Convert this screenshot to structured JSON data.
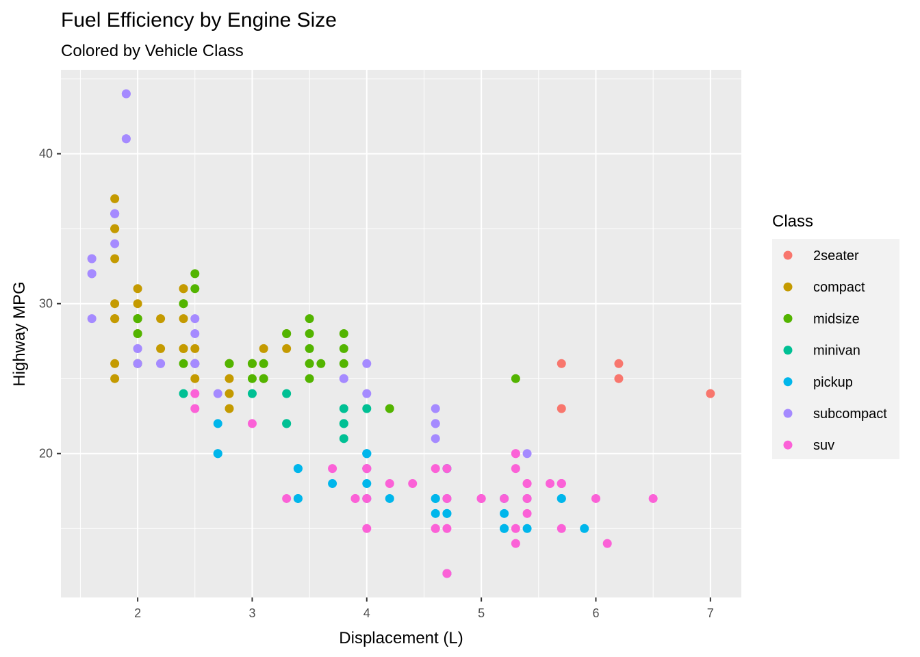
{
  "chart_data": {
    "type": "scatter",
    "title": "Fuel Efficiency by Engine Size",
    "subtitle": "Colored by Vehicle Class",
    "xlabel": "Displacement (L)",
    "ylabel": "Highway MPG",
    "xlim": [
      1.33,
      7.27
    ],
    "ylim": [
      10.4,
      45.6
    ],
    "x_ticks": [
      2,
      3,
      4,
      5,
      6,
      7
    ],
    "y_ticks": [
      20,
      30,
      40
    ],
    "grid": true,
    "legend": {
      "title": "Class",
      "position": "right"
    },
    "series": [
      {
        "name": "2seater",
        "color": "#F8766D",
        "points": [
          [
            5.7,
            26
          ],
          [
            5.7,
            23
          ],
          [
            6.2,
            26
          ],
          [
            6.2,
            25
          ],
          [
            7.0,
            24
          ]
        ]
      },
      {
        "name": "compact",
        "color": "#C49A00",
        "points": [
          [
            1.8,
            29
          ],
          [
            1.8,
            29
          ],
          [
            2.0,
            31
          ],
          [
            2.0,
            30
          ],
          [
            2.8,
            26
          ],
          [
            2.8,
            26
          ],
          [
            3.1,
            27
          ],
          [
            1.8,
            26
          ],
          [
            1.8,
            25
          ],
          [
            2.0,
            28
          ],
          [
            2.0,
            29
          ],
          [
            2.8,
            24
          ],
          [
            2.8,
            25
          ],
          [
            3.1,
            25
          ],
          [
            2.2,
            27
          ],
          [
            2.2,
            29
          ],
          [
            2.4,
            31
          ],
          [
            2.4,
            31
          ],
          [
            2.4,
            29
          ],
          [
            2.5,
            27
          ],
          [
            2.5,
            25
          ],
          [
            2.5,
            26
          ],
          [
            1.8,
            33
          ],
          [
            1.8,
            35
          ],
          [
            1.8,
            37
          ],
          [
            1.8,
            35
          ],
          [
            1.8,
            30
          ],
          [
            2.0,
            29
          ],
          [
            2.0,
            26
          ],
          [
            2.8,
            23
          ],
          [
            2.5,
            26
          ],
          [
            3.0,
            26
          ],
          [
            3.3,
            28
          ],
          [
            3.3,
            27
          ],
          [
            2.4,
            27
          ],
          [
            2.4,
            27
          ]
        ]
      },
      {
        "name": "midsize",
        "color": "#53B400",
        "points": [
          [
            2.8,
            26
          ],
          [
            3.1,
            26
          ],
          [
            3.1,
            25
          ],
          [
            2.4,
            26
          ],
          [
            2.4,
            30
          ],
          [
            2.5,
            31
          ],
          [
            2.5,
            32
          ],
          [
            3.0,
            25
          ],
          [
            3.0,
            26
          ],
          [
            3.5,
            29
          ],
          [
            3.5,
            28
          ],
          [
            3.3,
            28
          ],
          [
            3.5,
            26
          ],
          [
            3.5,
            25
          ],
          [
            3.6,
            26
          ],
          [
            3.8,
            26
          ],
          [
            3.8,
            27
          ],
          [
            3.8,
            28
          ],
          [
            5.3,
            25
          ],
          [
            2.0,
            29
          ],
          [
            2.0,
            28
          ],
          [
            4.2,
            23
          ],
          [
            2.4,
            30
          ],
          [
            3.5,
            27
          ],
          [
            2.8,
            26
          ],
          [
            3.1,
            26
          ],
          [
            3.0,
            26
          ],
          [
            3.5,
            26
          ],
          [
            2.0,
            29
          ],
          [
            2.0,
            26
          ]
        ]
      },
      {
        "name": "minivan",
        "color": "#00C094",
        "points": [
          [
            2.4,
            24
          ],
          [
            3.0,
            24
          ],
          [
            3.3,
            22
          ],
          [
            3.3,
            24
          ],
          [
            3.8,
            22
          ],
          [
            3.8,
            21
          ],
          [
            3.8,
            23
          ],
          [
            4.0,
            23
          ],
          [
            3.3,
            22
          ],
          [
            3.8,
            22
          ]
        ]
      },
      {
        "name": "pickup",
        "color": "#00B6EB",
        "points": [
          [
            2.7,
            20
          ],
          [
            2.7,
            22
          ],
          [
            2.7,
            20
          ],
          [
            3.4,
            17
          ],
          [
            3.4,
            19
          ],
          [
            4.0,
            20
          ],
          [
            4.0,
            17
          ],
          [
            4.7,
            19
          ],
          [
            4.7,
            16
          ],
          [
            4.7,
            16
          ],
          [
            5.2,
            17
          ],
          [
            5.2,
            15
          ],
          [
            5.7,
            17
          ],
          [
            5.9,
            15
          ],
          [
            4.6,
            16
          ],
          [
            4.6,
            17
          ],
          [
            5.4,
            15
          ],
          [
            3.7,
            18
          ],
          [
            4.0,
            18
          ],
          [
            4.2,
            17
          ],
          [
            5.2,
            16
          ],
          [
            4.6,
            17
          ],
          [
            4.7,
            17
          ],
          [
            4.0,
            19
          ],
          [
            4.0,
            20
          ],
          [
            4.7,
            19
          ],
          [
            4.7,
            12
          ],
          [
            5.2,
            15
          ],
          [
            5.7,
            17
          ],
          [
            5.4,
            17
          ],
          [
            3.4,
            17
          ],
          [
            3.4,
            19
          ],
          [
            4.0,
            20
          ]
        ]
      },
      {
        "name": "subcompact",
        "color": "#A58AFF",
        "points": [
          [
            1.9,
            44
          ],
          [
            1.9,
            41
          ],
          [
            1.6,
            33
          ],
          [
            1.6,
            32
          ],
          [
            1.6,
            29
          ],
          [
            1.8,
            34
          ],
          [
            1.8,
            36
          ],
          [
            2.0,
            27
          ],
          [
            2.0,
            26
          ],
          [
            2.2,
            26
          ],
          [
            2.5,
            29
          ],
          [
            2.5,
            28
          ],
          [
            2.5,
            26
          ],
          [
            2.7,
            24
          ],
          [
            3.8,
            25
          ],
          [
            4.0,
            24
          ],
          [
            4.0,
            26
          ],
          [
            4.6,
            21
          ],
          [
            4.6,
            22
          ],
          [
            4.6,
            23
          ],
          [
            5.4,
            20
          ],
          [
            1.8,
            36
          ],
          [
            1.6,
            32
          ],
          [
            2.5,
            26
          ],
          [
            1.8,
            36
          ],
          [
            2.0,
            26
          ],
          [
            2.2,
            26
          ],
          [
            2.5,
            26
          ],
          [
            3.8,
            25
          ],
          [
            4.6,
            22
          ],
          [
            2.5,
            26
          ],
          [
            1.6,
            33
          ],
          [
            1.9,
            41
          ],
          [
            1.9,
            44
          ],
          [
            2.0,
            27
          ]
        ]
      },
      {
        "name": "suv",
        "color": "#FB61D7",
        "points": [
          [
            5.3,
            20
          ],
          [
            5.3,
            15
          ],
          [
            5.7,
            18
          ],
          [
            6.5,
            17
          ],
          [
            4.7,
            12
          ],
          [
            3.7,
            19
          ],
          [
            3.9,
            17
          ],
          [
            4.7,
            17
          ],
          [
            4.7,
            15
          ],
          [
            5.2,
            17
          ],
          [
            4.0,
            19
          ],
          [
            4.0,
            17
          ],
          [
            4.6,
            19
          ],
          [
            5.0,
            17
          ],
          [
            5.0,
            17
          ],
          [
            5.4,
            17
          ],
          [
            4.2,
            18
          ],
          [
            4.4,
            18
          ],
          [
            4.6,
            15
          ],
          [
            5.4,
            18
          ],
          [
            5.4,
            16
          ],
          [
            4.0,
            15
          ],
          [
            4.0,
            19
          ],
          [
            4.6,
            15
          ],
          [
            5.0,
            17
          ],
          [
            2.5,
            23
          ],
          [
            2.5,
            24
          ],
          [
            3.3,
            17
          ],
          [
            5.3,
            14
          ],
          [
            5.3,
            20
          ],
          [
            5.7,
            18
          ],
          [
            6.1,
            14
          ],
          [
            6.0,
            17
          ],
          [
            5.6,
            18
          ],
          [
            5.7,
            15
          ],
          [
            4.7,
            19
          ],
          [
            4.7,
            17
          ],
          [
            5.4,
            17
          ],
          [
            3.0,
            22
          ],
          [
            3.9,
            17
          ],
          [
            5.3,
            19
          ],
          [
            4.7,
            12
          ],
          [
            4.0,
            17
          ],
          [
            4.0,
            19
          ],
          [
            5.4,
            18
          ],
          [
            5.7,
            18
          ]
        ]
      }
    ]
  }
}
